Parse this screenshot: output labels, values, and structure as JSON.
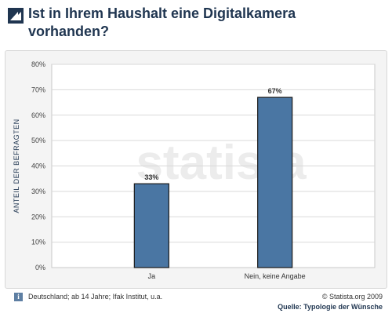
{
  "title": "Ist in Ihrem Haushalt eine Digitalkamera vorhanden?",
  "watermark": "statista",
  "colors": {
    "bar": "#4a76a3",
    "bar_edge": "#1a1a1a",
    "grid": "#d9d9d9",
    "title": "#1f3550"
  },
  "icons": {
    "title": "statista-logo-icon",
    "info": "info-icon"
  },
  "footer": {
    "info_icon_text": "i",
    "note": "Deutschland; ab 14 Jahre; Ifak Institut, u.a.",
    "copyright": "© Statista.org 2009",
    "source": "Quelle: Typologie der Wünsche"
  },
  "chart_data": {
    "type": "bar",
    "categories": [
      "Ja",
      "Nein, keine Angabe"
    ],
    "values": [
      33,
      67
    ],
    "data_labels": [
      "33%",
      "67%"
    ],
    "ylabel": "ANTEIL DER BEFRAGTEN",
    "ylim": [
      0,
      80
    ],
    "yticks": [
      0,
      10,
      20,
      30,
      40,
      50,
      60,
      70,
      80
    ],
    "ytick_labels": [
      "0%",
      "10%",
      "20%",
      "30%",
      "40%",
      "50%",
      "60%",
      "70%",
      "80%"
    ],
    "grid": true,
    "legend": "none"
  }
}
